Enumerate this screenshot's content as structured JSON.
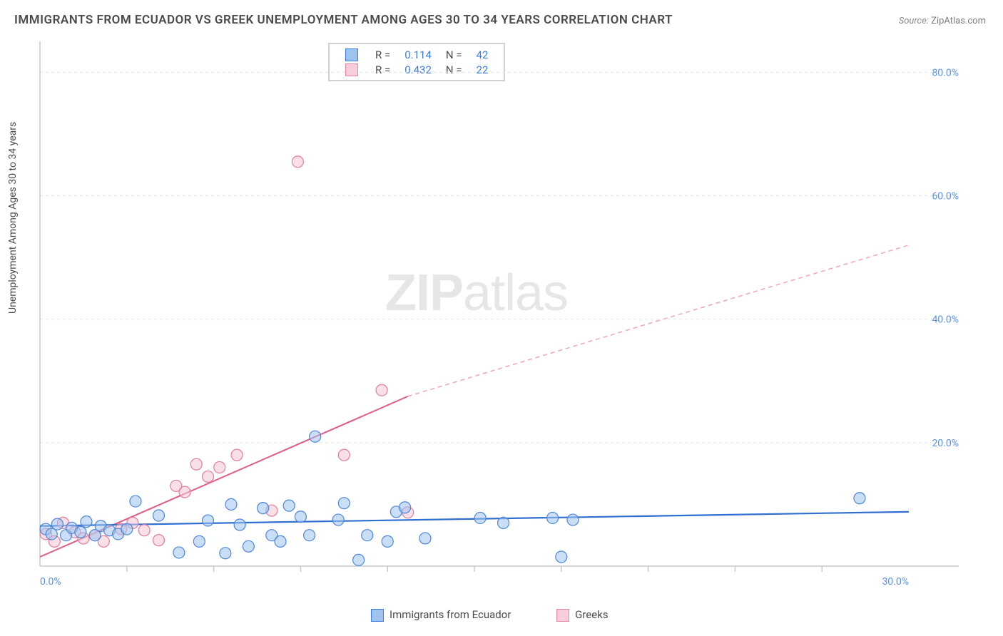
{
  "title": "IMMIGRANTS FROM ECUADOR VS GREEK UNEMPLOYMENT AMONG AGES 30 TO 34 YEARS CORRELATION CHART",
  "source_label": "Source:",
  "source_value": "ZipAtlas.com",
  "y_axis_label": "Unemployment Among Ages 30 to 34 years",
  "watermark_bold": "ZIP",
  "watermark_rest": "atlas",
  "chart": {
    "type": "scatter",
    "xlim": [
      0,
      30
    ],
    "ylim": [
      0,
      85
    ],
    "x_ticks": [
      0,
      30
    ],
    "x_tick_labels": [
      "0.0%",
      "30.0%"
    ],
    "x_minor_ticks": [
      3,
      6,
      9,
      12,
      15,
      18,
      21,
      24,
      27
    ],
    "y_ticks": [
      20,
      40,
      60,
      80
    ],
    "y_tick_labels": [
      "20.0%",
      "40.0%",
      "60.0%",
      "80.0%"
    ],
    "grid_color": "#e2e2e2",
    "axis_color": "#c8c8c8",
    "bg_color": "#ffffff",
    "marker_radius": 8,
    "marker_opacity": 0.55,
    "series": [
      {
        "key": "blue",
        "label": "Immigrants from Ecuador",
        "fill": "#9fc2ef",
        "stroke": "#4d86d8",
        "R_label": "R =",
        "R": "0.114",
        "N_label": "N =",
        "N": "42",
        "trend": {
          "x1": 0,
          "y1": 6.5,
          "x2": 30,
          "y2": 8.8,
          "color": "#2f6fd0",
          "width": 2.2
        },
        "points": [
          [
            0.2,
            6.0
          ],
          [
            0.4,
            5.2
          ],
          [
            0.6,
            6.8
          ],
          [
            0.9,
            5.0
          ],
          [
            1.1,
            6.2
          ],
          [
            1.4,
            5.5
          ],
          [
            1.6,
            7.2
          ],
          [
            1.9,
            5.0
          ],
          [
            2.1,
            6.5
          ],
          [
            2.4,
            5.8
          ],
          [
            2.7,
            5.2
          ],
          [
            3.0,
            6.0
          ],
          [
            3.3,
            10.5
          ],
          [
            4.1,
            8.2
          ],
          [
            4.8,
            2.2
          ],
          [
            5.5,
            4.0
          ],
          [
            5.8,
            7.4
          ],
          [
            6.4,
            2.1
          ],
          [
            6.6,
            10.0
          ],
          [
            6.9,
            6.7
          ],
          [
            7.2,
            3.2
          ],
          [
            7.7,
            9.4
          ],
          [
            8.0,
            5.0
          ],
          [
            8.3,
            4.0
          ],
          [
            8.6,
            9.8
          ],
          [
            9.0,
            8.0
          ],
          [
            9.3,
            5.0
          ],
          [
            9.5,
            21.0
          ],
          [
            10.3,
            7.5
          ],
          [
            10.5,
            10.2
          ],
          [
            11.0,
            1.0
          ],
          [
            11.3,
            5.0
          ],
          [
            12.0,
            4.0
          ],
          [
            12.3,
            8.8
          ],
          [
            12.6,
            9.5
          ],
          [
            13.3,
            4.5
          ],
          [
            15.2,
            7.8
          ],
          [
            16.0,
            7.0
          ],
          [
            17.7,
            7.8
          ],
          [
            18.0,
            1.5
          ],
          [
            18.4,
            7.5
          ],
          [
            28.3,
            11.0
          ]
        ]
      },
      {
        "key": "pink",
        "label": "Greeks",
        "fill": "#f4c4d1",
        "stroke": "#e07d9d",
        "R_label": "R =",
        "R": "0.432",
        "N_label": "N =",
        "N": "22",
        "trend_solid": {
          "x1": 0,
          "y1": 1.5,
          "x2": 12.7,
          "y2": 27.5,
          "color": "#e45a87",
          "width": 2
        },
        "trend_dash": {
          "x1": 12.7,
          "y1": 27.5,
          "x2": 30,
          "y2": 52.0,
          "color": "#f0a8bd",
          "width": 1.6,
          "dash": "6 5"
        },
        "points": [
          [
            0.2,
            5.2
          ],
          [
            0.5,
            4.0
          ],
          [
            0.8,
            7.0
          ],
          [
            1.2,
            5.5
          ],
          [
            1.5,
            4.5
          ],
          [
            1.9,
            5.0
          ],
          [
            2.2,
            4.0
          ],
          [
            2.8,
            6.0
          ],
          [
            3.2,
            7.0
          ],
          [
            3.6,
            5.8
          ],
          [
            4.1,
            4.2
          ],
          [
            4.7,
            13.0
          ],
          [
            5.0,
            12.0
          ],
          [
            5.4,
            16.5
          ],
          [
            5.8,
            14.5
          ],
          [
            6.2,
            16.0
          ],
          [
            6.8,
            18.0
          ],
          [
            8.0,
            9.0
          ],
          [
            8.9,
            65.5
          ],
          [
            10.5,
            18.0
          ],
          [
            11.8,
            28.5
          ],
          [
            12.7,
            8.7
          ]
        ]
      }
    ]
  },
  "colors": {
    "blue_fill": "#9fc2ef",
    "blue_stroke": "#3b7de0",
    "pink_fill": "#f7cdd9",
    "pink_stroke": "#e888a6",
    "tick_label": "#5d92e0"
  }
}
